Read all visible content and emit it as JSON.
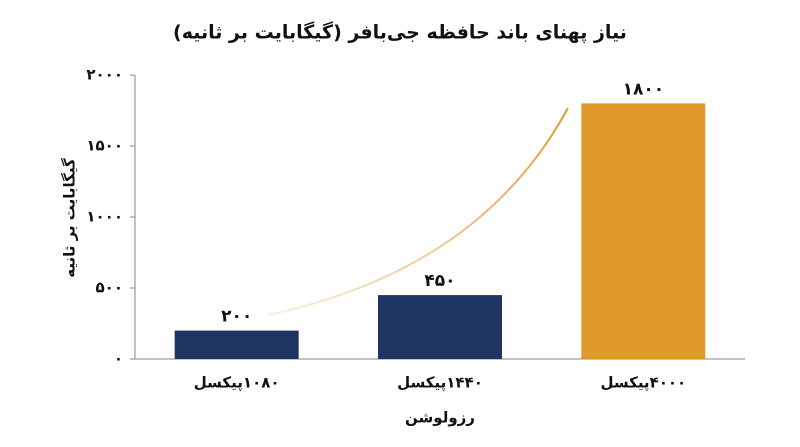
{
  "chart_data": {
    "type": "bar",
    "title": "نیاز پهنای باند حافظه جی‌بافر (گیگابایت بر ثانیه)",
    "x_label": "رزولوشن",
    "y_label": "گیگابایت بر ثانیه",
    "categories": [
      "۱۰۸۰پیکسل",
      "۱۴۴۰پیکسل",
      "۴۰۰۰پیکسل"
    ],
    "values": [
      200,
      450,
      1800
    ],
    "value_labels": [
      "۲۰۰",
      "۴۵۰",
      "۱۸۰۰"
    ],
    "colors": [
      "#1f3461",
      "#1f3461",
      "#e09a2c"
    ],
    "ylim": [
      0,
      2000
    ],
    "yticks": [
      {
        "value": 0,
        "label": "۰"
      },
      {
        "value": 500,
        "label": "۵۰۰"
      },
      {
        "value": 1000,
        "label": "۱۰۰۰"
      },
      {
        "value": 1500,
        "label": "۱۵۰۰"
      },
      {
        "value": 2000,
        "label": "۲۰۰۰"
      }
    ],
    "grid": false
  }
}
